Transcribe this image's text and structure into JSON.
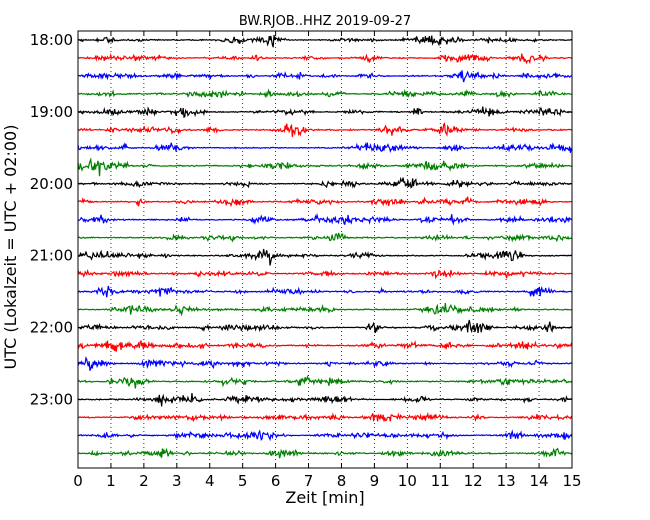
{
  "chart_data": {
    "type": "line",
    "chart_kind": "helicorder",
    "title": "BW.RJOB..HHZ 2019-09-27",
    "xlabel": "Zeit  [min]",
    "ylabel": "UTC (Lokalzeit = UTC + 02:00)",
    "xlim": [
      0,
      15
    ],
    "x_ticks": [
      0,
      1,
      2,
      3,
      4,
      5,
      6,
      7,
      8,
      9,
      10,
      11,
      12,
      13,
      14,
      15
    ],
    "x_tick_labels": [
      "0",
      "1",
      "2",
      "3",
      "4",
      "5",
      "6",
      "7",
      "8",
      "9",
      "10",
      "11",
      "12",
      "13",
      "14",
      "15"
    ],
    "y_tick_labels": [
      "18:00",
      "19:00",
      "20:00",
      "21:00",
      "22:00",
      "23:00"
    ],
    "grid": {
      "x": true,
      "style": "dotted"
    },
    "trace_colors": [
      "#000000",
      "#ff0000",
      "#0000ff",
      "#008000"
    ],
    "series": [
      {
        "start": "18:00",
        "color": "#000000"
      },
      {
        "start": "18:15",
        "color": "#ff0000"
      },
      {
        "start": "18:30",
        "color": "#0000ff"
      },
      {
        "start": "18:45",
        "color": "#008000"
      },
      {
        "start": "19:00",
        "color": "#000000"
      },
      {
        "start": "19:15",
        "color": "#ff0000"
      },
      {
        "start": "19:30",
        "color": "#0000ff"
      },
      {
        "start": "19:45",
        "color": "#008000"
      },
      {
        "start": "20:00",
        "color": "#000000"
      },
      {
        "start": "20:15",
        "color": "#ff0000"
      },
      {
        "start": "20:30",
        "color": "#0000ff"
      },
      {
        "start": "20:45",
        "color": "#008000"
      },
      {
        "start": "21:00",
        "color": "#000000"
      },
      {
        "start": "21:15",
        "color": "#ff0000"
      },
      {
        "start": "21:30",
        "color": "#0000ff"
      },
      {
        "start": "21:45",
        "color": "#008000"
      },
      {
        "start": "22:00",
        "color": "#000000"
      },
      {
        "start": "22:15",
        "color": "#ff0000"
      },
      {
        "start": "22:30",
        "color": "#0000ff"
      },
      {
        "start": "22:45",
        "color": "#008000"
      },
      {
        "start": "23:00",
        "color": "#000000"
      },
      {
        "start": "23:15",
        "color": "#ff0000"
      },
      {
        "start": "23:30",
        "color": "#0000ff"
      },
      {
        "start": "23:45",
        "color": "#008000"
      }
    ]
  }
}
